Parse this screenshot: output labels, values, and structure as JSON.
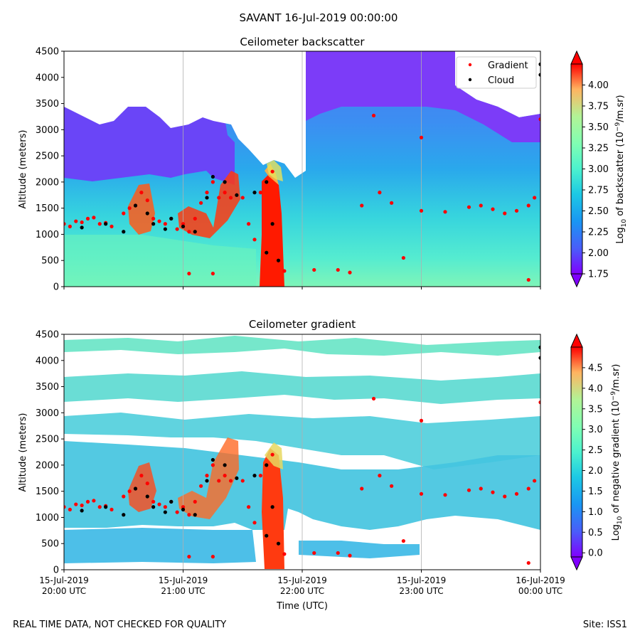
{
  "suptitle": "SAVANT 16-Jul-2019 00:00:00",
  "footer": {
    "left": "REAL TIME DATA, NOT CHECKED FOR QUALITY",
    "right": "Site: ISS1"
  },
  "chart_data": [
    {
      "type": "heatmap",
      "title": "Ceilometer backscatter",
      "ylabel": "Altitude (meters)",
      "ylim": [
        0,
        4500
      ],
      "yticks": [
        "0",
        "500",
        "1000",
        "1500",
        "2000",
        "2500",
        "3000",
        "3500",
        "4000",
        "4500"
      ],
      "xlim": [
        "2019-07-15 20:00",
        "2019-07-16 00:00"
      ],
      "grid": "vertical at hours",
      "legend": {
        "placement": "top-right",
        "entries": [
          "Gradient",
          "Cloud"
        ]
      },
      "colorbar": {
        "label": "Log10 of backscatter (10^-9/m.sr)",
        "label_parts": {
          "pre": "Log",
          "sub": "10",
          "mid": " of backscatter (10",
          "sup": "−9",
          "post": "/m.sr)"
        },
        "range": [
          1.75,
          4.25
        ],
        "ticks": [
          "1.75",
          "2.00",
          "2.25",
          "2.50",
          "2.75",
          "3.00",
          "3.25",
          "3.50",
          "3.75",
          "4.00"
        ]
      },
      "series": [
        {
          "name": "Gradient",
          "color": "#ff0000",
          "points": [
            [
              0.0,
              1200
            ],
            [
              0.05,
              1150
            ],
            [
              0.1,
              1250
            ],
            [
              0.15,
              1230
            ],
            [
              0.2,
              1300
            ],
            [
              0.25,
              1320
            ],
            [
              0.3,
              1200
            ],
            [
              0.35,
              1220
            ],
            [
              0.4,
              1150
            ],
            [
              0.5,
              1400
            ],
            [
              0.55,
              1500
            ],
            [
              0.6,
              1550
            ],
            [
              0.65,
              1800
            ],
            [
              0.7,
              1650
            ],
            [
              0.75,
              1300
            ],
            [
              0.8,
              1250
            ],
            [
              0.85,
              1200
            ],
            [
              0.9,
              1300
            ],
            [
              0.95,
              1100
            ],
            [
              1.0,
              1200
            ],
            [
              1.05,
              1050
            ],
            [
              1.1,
              1300
            ],
            [
              1.15,
              1600
            ],
            [
              1.2,
              1800
            ],
            [
              1.25,
              2000
            ],
            [
              1.3,
              1700
            ],
            [
              1.35,
              1800
            ],
            [
              1.4,
              1700
            ],
            [
              1.5,
              1700
            ],
            [
              1.55,
              1200
            ],
            [
              1.6,
              900
            ],
            [
              1.65,
              1800
            ],
            [
              1.75,
              2200
            ],
            [
              1.85,
              300
            ],
            [
              2.1,
              320
            ],
            [
              2.3,
              320
            ],
            [
              2.4,
              270
            ],
            [
              2.6,
              3270
            ],
            [
              2.65,
              1800
            ],
            [
              2.75,
              1600
            ],
            [
              2.85,
              550
            ],
            [
              2.5,
              1550
            ],
            [
              3.0,
              2850
            ],
            [
              3.0,
              1450
            ],
            [
              3.2,
              1430
            ],
            [
              3.4,
              1520
            ],
            [
              3.5,
              1550
            ],
            [
              3.6,
              1480
            ],
            [
              3.7,
              1400
            ],
            [
              3.8,
              1450
            ],
            [
              3.9,
              1550
            ],
            [
              3.95,
              1700
            ],
            [
              1.05,
              250
            ],
            [
              1.25,
              250
            ],
            [
              4.0,
              3200
            ],
            [
              3.9,
              130
            ]
          ]
        },
        {
          "name": "Cloud",
          "color": "#000000",
          "points": [
            [
              0.15,
              1130
            ],
            [
              0.35,
              1200
            ],
            [
              0.5,
              1050
            ],
            [
              0.6,
              1550
            ],
            [
              0.7,
              1400
            ],
            [
              0.75,
              1200
            ],
            [
              0.85,
              1100
            ],
            [
              0.9,
              1300
            ],
            [
              1.0,
              1150
            ],
            [
              1.1,
              1050
            ],
            [
              1.2,
              1700
            ],
            [
              1.25,
              2100
            ],
            [
              1.35,
              2000
            ],
            [
              1.45,
              1750
            ],
            [
              1.6,
              1800
            ],
            [
              1.7,
              2000
            ],
            [
              1.75,
              1200
            ],
            [
              1.7,
              650
            ],
            [
              1.8,
              500
            ],
            [
              4.0,
              4250
            ],
            [
              4.0,
              4050
            ]
          ]
        }
      ]
    },
    {
      "type": "heatmap",
      "title": "Ceilometer gradient",
      "xlabel": "Time (UTC)",
      "ylabel": "Altitude (meters)",
      "ylim": [
        0,
        4500
      ],
      "yticks": [
        "0",
        "500",
        "1000",
        "1500",
        "2000",
        "2500",
        "3000",
        "3500",
        "4000",
        "4500"
      ],
      "xticks": [
        {
          "line1": "15-Jul-2019",
          "line2": "20:00 UTC"
        },
        {
          "line1": "15-Jul-2019",
          "line2": "21:00 UTC"
        },
        {
          "line1": "15-Jul-2019",
          "line2": "22:00 UTC"
        },
        {
          "line1": "15-Jul-2019",
          "line2": "23:00 UTC"
        },
        {
          "line1": "16-Jul-2019",
          "line2": "00:00 UTC"
        }
      ],
      "grid": "vertical at hours",
      "colorbar": {
        "label": "Log10 of negative gradient (10^-9/m.sr)",
        "label_parts": {
          "pre": "Log",
          "sub": "10",
          "mid": " of negative gradient (10",
          "sup": "−9",
          "post": "/m.sr)"
        },
        "range": [
          -0.1,
          5.0
        ],
        "ticks": [
          "0.0",
          "0.5",
          "1.0",
          "1.5",
          "2.0",
          "2.5",
          "3.0",
          "3.5",
          "4.0",
          "4.5"
        ]
      }
    }
  ],
  "colors": {
    "gradient_marker": "#ff0000",
    "cloud_marker": "#000000",
    "grid": "#b0b0b0"
  }
}
